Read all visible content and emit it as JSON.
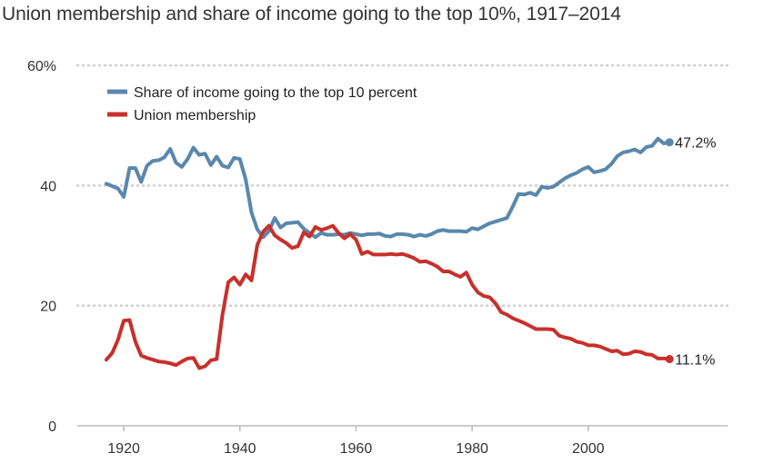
{
  "chart_data": {
    "type": "line",
    "title": "Union membership and share of income going to the top 10%, 1917–2014",
    "xlabel": "",
    "ylabel": "",
    "xlim": [
      1912,
      2024
    ],
    "ylim": [
      0,
      60
    ],
    "grid": true,
    "legend_position": "top-left",
    "x_ticks": [
      {
        "value": 1920,
        "label": "1920"
      },
      {
        "value": 1940,
        "label": "1940"
      },
      {
        "value": 1960,
        "label": "1960"
      },
      {
        "value": 1980,
        "label": "1980"
      },
      {
        "value": 2000,
        "label": "2000"
      }
    ],
    "y_ticks": [
      {
        "value": 0,
        "label": "0"
      },
      {
        "value": 20,
        "label": "20"
      },
      {
        "value": 40,
        "label": "40"
      },
      {
        "value": 60,
        "label": "60%"
      }
    ],
    "series": [
      {
        "name": "Share of income going to the top 10 percent",
        "color": "#5a87ad",
        "end_label": "47.2%",
        "x": [
          1917,
          1918,
          1919,
          1920,
          1921,
          1922,
          1923,
          1924,
          1925,
          1926,
          1927,
          1928,
          1929,
          1930,
          1931,
          1932,
          1933,
          1934,
          1935,
          1936,
          1937,
          1938,
          1939,
          1940,
          1941,
          1942,
          1943,
          1944,
          1945,
          1946,
          1947,
          1948,
          1949,
          1950,
          1951,
          1952,
          1953,
          1954,
          1955,
          1956,
          1957,
          1958,
          1959,
          1960,
          1961,
          1962,
          1963,
          1964,
          1965,
          1966,
          1967,
          1968,
          1969,
          1970,
          1971,
          1972,
          1973,
          1974,
          1975,
          1976,
          1977,
          1978,
          1979,
          1980,
          1981,
          1982,
          1983,
          1984,
          1985,
          1986,
          1987,
          1988,
          1989,
          1990,
          1991,
          1992,
          1993,
          1994,
          1995,
          1996,
          1997,
          1998,
          1999,
          2000,
          2001,
          2002,
          2003,
          2004,
          2005,
          2006,
          2007,
          2008,
          2009,
          2010,
          2011,
          2012,
          2013,
          2014
        ],
        "values": [
          40.3,
          39.9,
          39.5,
          38.1,
          42.9,
          42.9,
          40.6,
          43.3,
          44.1,
          44.2,
          44.7,
          46.1,
          43.8,
          43.1,
          44.4,
          46.3,
          45.1,
          45.3,
          43.4,
          44.8,
          43.3,
          43.0,
          44.6,
          44.4,
          41.0,
          35.5,
          32.7,
          31.4,
          32.4,
          34.6,
          33.0,
          33.7,
          33.8,
          33.9,
          32.8,
          32.1,
          31.4,
          32.1,
          31.8,
          31.8,
          31.9,
          31.8,
          32.1,
          31.9,
          31.7,
          31.9,
          31.9,
          32.0,
          31.6,
          31.5,
          31.9,
          31.9,
          31.8,
          31.5,
          31.8,
          31.6,
          31.9,
          32.4,
          32.6,
          32.4,
          32.4,
          32.4,
          32.3,
          32.9,
          32.7,
          33.2,
          33.7,
          34.0,
          34.3,
          34.6,
          36.5,
          38.6,
          38.5,
          38.8,
          38.4,
          39.8,
          39.6,
          39.8,
          40.5,
          41.2,
          41.7,
          42.1,
          42.7,
          43.1,
          42.2,
          42.4,
          42.7,
          43.6,
          44.9,
          45.5,
          45.7,
          46.0,
          45.5,
          46.4,
          46.6,
          47.8,
          47.0,
          47.2
        ]
      },
      {
        "name": "Union membership",
        "color": "#c8302b",
        "end_label": "11.1%",
        "x": [
          1917,
          1918,
          1919,
          1920,
          1921,
          1922,
          1923,
          1924,
          1925,
          1926,
          1927,
          1928,
          1929,
          1930,
          1931,
          1932,
          1933,
          1934,
          1935,
          1936,
          1937,
          1938,
          1939,
          1940,
          1941,
          1942,
          1943,
          1944,
          1945,
          1946,
          1947,
          1948,
          1949,
          1950,
          1951,
          1952,
          1953,
          1954,
          1955,
          1956,
          1957,
          1958,
          1959,
          1960,
          1961,
          1962,
          1963,
          1964,
          1965,
          1966,
          1967,
          1968,
          1969,
          1970,
          1971,
          1972,
          1973,
          1974,
          1975,
          1976,
          1977,
          1978,
          1979,
          1980,
          1981,
          1982,
          1983,
          1984,
          1985,
          1986,
          1987,
          1988,
          1989,
          1990,
          1991,
          1992,
          1993,
          1994,
          1995,
          1996,
          1997,
          1998,
          1999,
          2000,
          2001,
          2002,
          2003,
          2004,
          2005,
          2006,
          2007,
          2008,
          2009,
          2010,
          2011,
          2012,
          2013,
          2014
        ],
        "values": [
          11.0,
          12.1,
          14.3,
          17.5,
          17.6,
          14.0,
          11.7,
          11.3,
          11.0,
          10.7,
          10.6,
          10.4,
          10.1,
          10.7,
          11.2,
          11.3,
          9.6,
          9.9,
          10.9,
          11.1,
          18.5,
          23.9,
          24.7,
          23.5,
          25.2,
          24.2,
          30.1,
          32.3,
          33.3,
          31.7,
          31.0,
          30.4,
          29.6,
          29.9,
          32.2,
          31.5,
          33.1,
          32.6,
          32.9,
          33.3,
          32.1,
          31.2,
          31.9,
          31.0,
          28.6,
          29.0,
          28.5,
          28.5,
          28.5,
          28.6,
          28.5,
          28.6,
          28.3,
          27.9,
          27.3,
          27.4,
          27.0,
          26.5,
          25.7,
          25.7,
          25.2,
          24.8,
          25.5,
          23.5,
          22.2,
          21.6,
          21.4,
          20.4,
          18.9,
          18.5,
          17.9,
          17.5,
          17.1,
          16.6,
          16.1,
          16.1,
          16.1,
          16.0,
          15.0,
          14.7,
          14.5,
          14.0,
          13.8,
          13.4,
          13.4,
          13.2,
          12.8,
          12.4,
          12.5,
          11.9,
          12.0,
          12.4,
          12.3,
          11.9,
          11.8,
          11.2,
          11.2,
          11.1
        ]
      }
    ]
  }
}
